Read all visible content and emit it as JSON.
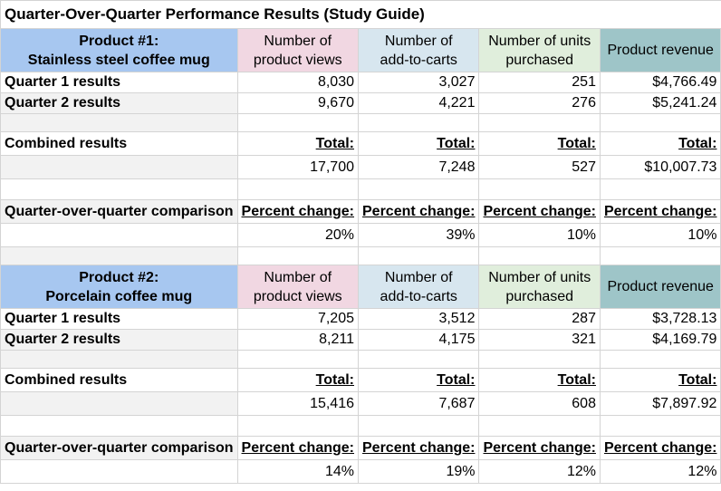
{
  "title": "Quarter-Over-Quarter Performance Results (Study Guide)",
  "columns": {
    "views": [
      "Number of",
      "product views"
    ],
    "carts": [
      "Number of",
      "add-to-carts"
    ],
    "units": [
      "Number of units",
      "purchased"
    ],
    "revenue": "Product revenue"
  },
  "labels": {
    "q1": "Quarter 1 results",
    "q2": "Quarter 2 results",
    "combined": "Combined results",
    "comparison": "Quarter-over-quarter comparison",
    "total": "Total:",
    "percent": "Percent change:"
  },
  "products": [
    {
      "heading": [
        "Product #1:",
        "Stainless steel coffee mug"
      ],
      "q1": [
        "8,030",
        "3,027",
        "251",
        "$4,766.49"
      ],
      "q2": [
        "9,670",
        "4,221",
        "276",
        "$5,241.24"
      ],
      "totals": [
        "17,700",
        "7,248",
        "527",
        "$10,007.73"
      ],
      "percent": [
        "20%",
        "39%",
        "10%",
        "10%"
      ]
    },
    {
      "heading": [
        "Product #2:",
        "Porcelain coffee mug"
      ],
      "q1": [
        "7,205",
        "3,512",
        "287",
        "$3,728.13"
      ],
      "q2": [
        "8,211",
        "4,175",
        "321",
        "$4,169.79"
      ],
      "totals": [
        "15,416",
        "7,687",
        "608",
        "$7,897.92"
      ],
      "percent": [
        "14%",
        "19%",
        "12%",
        "12%"
      ]
    }
  ]
}
